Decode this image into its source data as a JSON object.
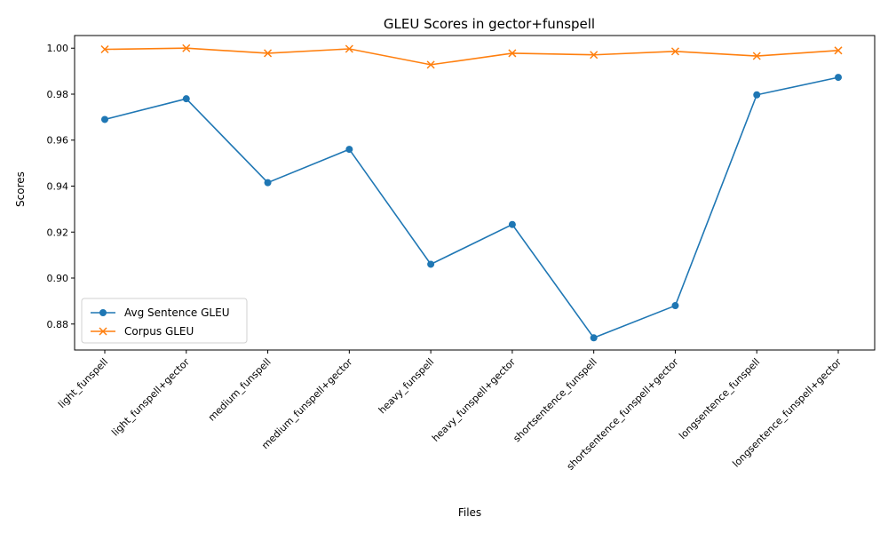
{
  "chart_data": {
    "type": "line",
    "title": "GLEU Scores in gector+funspell",
    "xlabel": "Files",
    "ylabel": "Scores",
    "categories": [
      "light_funspell",
      "light_funspell+gector",
      "medium_funspell",
      "medium_funspell+gector",
      "heavy_funspell",
      "heavy_funspell+gector",
      "shortsentence_funspell",
      "shortsentence_funspell+gector",
      "longsentence_funspell",
      "longsentence_funspell+gector"
    ],
    "ylim": [
      0.8687,
      1.0055
    ],
    "yticks": [
      "0.88",
      "0.90",
      "0.92",
      "0.94",
      "0.96",
      "0.98",
      "1.00"
    ],
    "grid": false,
    "legend_position": "lower-left",
    "series": [
      {
        "name": "Avg Sentence GLEU",
        "marker": "circle",
        "color": "#1f77b4",
        "values": [
          0.969,
          0.978,
          0.9415,
          0.956,
          0.906,
          0.9233,
          0.874,
          0.888,
          0.9797,
          0.9873
        ]
      },
      {
        "name": "Corpus GLEU",
        "marker": "x",
        "color": "#ff7f0e",
        "values": [
          0.9995,
          1.0,
          0.9978,
          0.9997,
          0.9928,
          0.9978,
          0.9971,
          0.9986,
          0.9966,
          0.999
        ]
      }
    ]
  }
}
